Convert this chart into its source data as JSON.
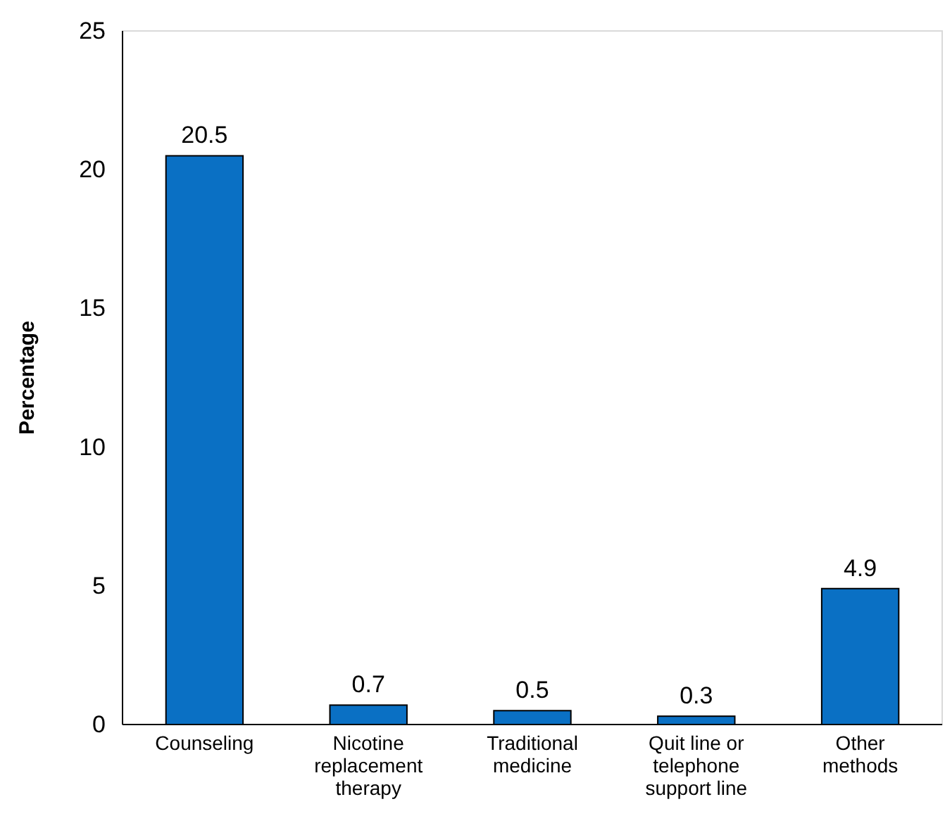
{
  "chart_data": {
    "type": "bar",
    "ylabel": "Percentage",
    "categories": [
      "Counseling",
      "Nicotine replacement therapy",
      "Traditional medicine",
      "Quit line or telephone support line",
      "Other methods"
    ],
    "values": [
      20.5,
      0.7,
      0.5,
      0.3,
      4.9
    ],
    "color": "#0a70c4",
    "ylim": [
      0,
      25
    ],
    "yticks": [
      0,
      5,
      10,
      15,
      20,
      25
    ],
    "grid": false,
    "data_labels": true
  }
}
